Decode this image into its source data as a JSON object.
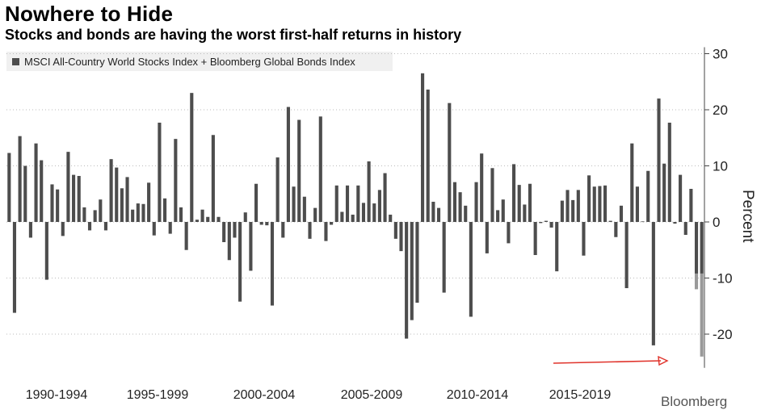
{
  "header": {
    "title": "Nowhere to Hide",
    "subtitle": "Stocks and bonds are having the worst first-half returns in history"
  },
  "source": "Bloomberg",
  "chart_data": {
    "type": "bar",
    "title": "Nowhere to Hide",
    "subtitle": "Stocks and bonds are having the worst first-half returns in history",
    "ylabel": "Percent",
    "xlabel": "",
    "ylim": [
      -26,
      30
    ],
    "yticks": [
      30,
      20,
      10,
      0,
      -10,
      -20
    ],
    "grid": true,
    "legend": {
      "position": "top-left",
      "entries": [
        "MSCI All-Country World Stocks Index + Bloomberg Global Bonds Index"
      ]
    },
    "colors": {
      "bar": "#4d4d4d",
      "highlight": "#999999",
      "arrow": "#e0332b",
      "grid": "#bbbbbb"
    },
    "period_labels": [
      "1990-1994",
      "1995-1999",
      "2000-2004",
      "2005-2009",
      "2010-2014",
      "2015-2019"
    ],
    "series": [
      {
        "name": "MSCI All-Country World Stocks Index + Bloomberg Global Bonds Index",
        "values": [
          12.3,
          -16.2,
          15.3,
          10.0,
          -2.8,
          14.0,
          11.0,
          -10.3,
          6.7,
          5.8,
          -2.5,
          12.5,
          8.4,
          8.2,
          2.6,
          -1.5,
          2.1,
          4.0,
          -1.5,
          11.2,
          9.7,
          6.0,
          8.0,
          2.2,
          3.3,
          3.2,
          7.0,
          -2.4,
          17.7,
          4.2,
          -2.1,
          14.8,
          2.6,
          -5.0,
          23.0,
          0.4,
          2.2,
          0.9,
          15.5,
          0.9,
          -3.6,
          -6.8,
          -2.8,
          -14.2,
          1.7,
          -8.7,
          6.8,
          -0.5,
          -0.6,
          -14.9,
          11.5,
          -2.8,
          20.5,
          6.3,
          18.2,
          4.5,
          -3.0,
          2.5,
          18.8,
          -3.4,
          -0.5,
          6.5,
          1.8,
          6.5,
          1.3,
          6.5,
          3.4,
          10.8,
          3.3,
          5.7,
          8.7,
          1.3,
          -3.0,
          -5.2,
          -20.8,
          -17.5,
          -14.4,
          26.5,
          23.6,
          3.6,
          2.5,
          -12.6,
          21.2,
          7.1,
          5.3,
          2.9,
          -16.9,
          7.1,
          12.2,
          -5.6,
          9.6,
          2.1,
          4.0,
          -3.8,
          10.3,
          6.6,
          3.1,
          6.8,
          -5.9,
          -0.2,
          0.2,
          -1.0,
          -8.8,
          3.8,
          5.7,
          3.9,
          5.7,
          -6.0,
          8.3,
          6.3,
          6.4,
          6.5,
          0.2,
          -2.7,
          2.9,
          -11.8,
          14.0,
          6.3,
          0.1,
          9.1,
          -22.0,
          22.0,
          10.4,
          17.7,
          -0.3,
          8.4,
          -2.3,
          5.9,
          -9.2,
          -9.2
        ],
        "highlight_bars": [
          {
            "index": 128,
            "from": -9.2,
            "to": -12.0
          },
          {
            "index": 129,
            "from": -9.2,
            "to": -24.0
          }
        ]
      }
    ]
  }
}
